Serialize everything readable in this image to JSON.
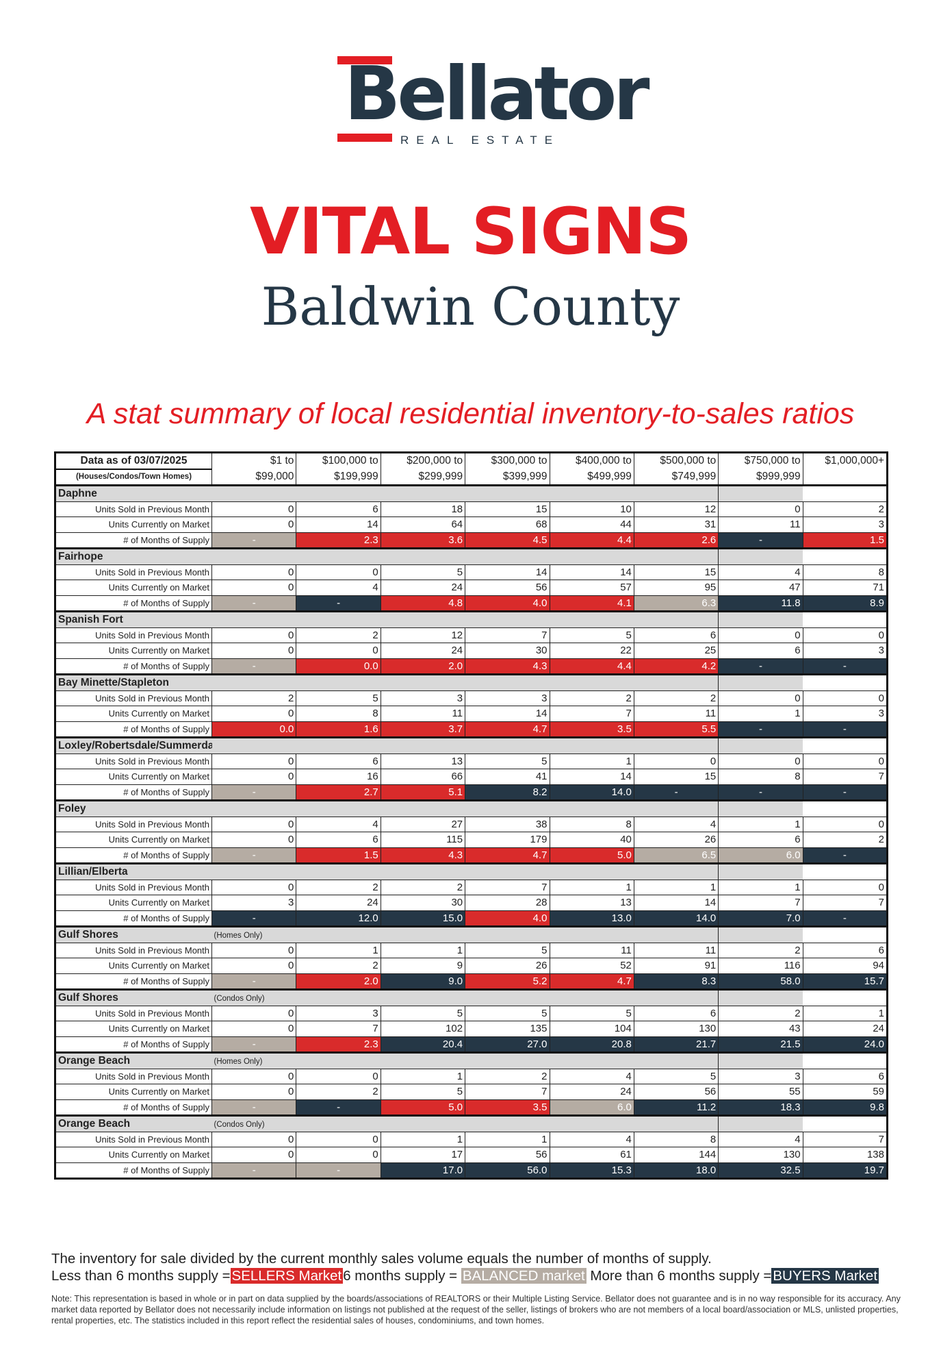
{
  "logo": {
    "name": "Bellator",
    "subtitle": "REAL ESTATE"
  },
  "title": "VITAL SIGNS",
  "county": "Baldwin County",
  "tagline": "A stat summary of local residential inventory-to-sales ratios",
  "colors": {
    "sellers": "#d92b2b",
    "balanced": "#b5aca3",
    "buyers": "#253746",
    "brand_red": "#e31e24",
    "brand_navy": "#253746"
  },
  "table": {
    "header": {
      "date_label": "Data as of 03/07/2025",
      "scope_label": "(Houses/Condos/Town Homes)",
      "columns": [
        [
          "$1 to",
          "$99,000"
        ],
        [
          "$100,000 to",
          "$199,999"
        ],
        [
          "$200,000 to",
          "$299,999"
        ],
        [
          "$300,000 to",
          "$399,999"
        ],
        [
          "$400,000 to",
          "$499,999"
        ],
        [
          "$500,000 to",
          "$749,999"
        ],
        [
          "$750,000 to",
          "$999,999"
        ],
        [
          "$1,000,000+",
          ""
        ]
      ]
    },
    "row_labels": {
      "sold": "Units Sold in Previous Month",
      "market": "Units Currently on Market",
      "supply": "# of Months of Supply"
    },
    "regions": [
      {
        "name": "Daphne",
        "note": "",
        "sold": [
          "0",
          "6",
          "18",
          "15",
          "10",
          "12",
          "0",
          "2"
        ],
        "market": [
          "0",
          "14",
          "64",
          "68",
          "44",
          "31",
          "11",
          "3"
        ],
        "supply": [
          "-",
          "2.3",
          "3.6",
          "4.5",
          "4.4",
          "2.6",
          "-",
          "1.5"
        ],
        "status": [
          "balanced",
          "sellers",
          "sellers",
          "sellers",
          "sellers",
          "sellers",
          "buyers",
          "sellers"
        ]
      },
      {
        "name": "Fairhope",
        "note": "",
        "sold": [
          "0",
          "0",
          "5",
          "14",
          "14",
          "15",
          "4",
          "8"
        ],
        "market": [
          "0",
          "4",
          "24",
          "56",
          "57",
          "95",
          "47",
          "71"
        ],
        "supply": [
          "-",
          "-",
          "4.8",
          "4.0",
          "4.1",
          "6.3",
          "11.8",
          "8.9"
        ],
        "status": [
          "balanced",
          "buyers",
          "sellers",
          "sellers",
          "sellers",
          "balanced",
          "buyers",
          "buyers"
        ]
      },
      {
        "name": "Spanish Fort",
        "note": "",
        "sold": [
          "0",
          "2",
          "12",
          "7",
          "5",
          "6",
          "0",
          "0"
        ],
        "market": [
          "0",
          "0",
          "24",
          "30",
          "22",
          "25",
          "6",
          "3"
        ],
        "supply": [
          "-",
          "0.0",
          "2.0",
          "4.3",
          "4.4",
          "4.2",
          "-",
          "-"
        ],
        "status": [
          "balanced",
          "sellers",
          "sellers",
          "sellers",
          "sellers",
          "sellers",
          "buyers",
          "buyers"
        ]
      },
      {
        "name": "Bay Minette/Stapleton",
        "note": "",
        "sold": [
          "2",
          "5",
          "3",
          "3",
          "2",
          "2",
          "0",
          "0"
        ],
        "market": [
          "0",
          "8",
          "11",
          "14",
          "7",
          "11",
          "1",
          "3"
        ],
        "supply": [
          "0.0",
          "1.6",
          "3.7",
          "4.7",
          "3.5",
          "5.5",
          "-",
          "-"
        ],
        "status": [
          "sellers",
          "sellers",
          "sellers",
          "sellers",
          "sellers",
          "sellers",
          "buyers",
          "buyers"
        ]
      },
      {
        "name": "Loxley/Robertsdale/Summerdale",
        "note": "",
        "sold": [
          "0",
          "6",
          "13",
          "5",
          "1",
          "0",
          "0",
          "0"
        ],
        "market": [
          "0",
          "16",
          "66",
          "41",
          "14",
          "15",
          "8",
          "7"
        ],
        "supply": [
          "-",
          "2.7",
          "5.1",
          "8.2",
          "14.0",
          "-",
          "-",
          "-"
        ],
        "status": [
          "balanced",
          "sellers",
          "sellers",
          "buyers",
          "buyers",
          "buyers",
          "buyers",
          "buyers"
        ]
      },
      {
        "name": "Foley",
        "note": "",
        "sold": [
          "0",
          "4",
          "27",
          "38",
          "8",
          "4",
          "1",
          "0"
        ],
        "market": [
          "0",
          "6",
          "115",
          "179",
          "40",
          "26",
          "6",
          "2"
        ],
        "supply": [
          "-",
          "1.5",
          "4.3",
          "4.7",
          "5.0",
          "6.5",
          "6.0",
          "-"
        ],
        "status": [
          "balanced",
          "sellers",
          "sellers",
          "sellers",
          "sellers",
          "balanced",
          "balanced",
          "buyers"
        ]
      },
      {
        "name": "Lillian/Elberta",
        "note": "",
        "sold": [
          "0",
          "2",
          "2",
          "7",
          "1",
          "1",
          "1",
          "0"
        ],
        "market": [
          "3",
          "24",
          "30",
          "28",
          "13",
          "14",
          "7",
          "7"
        ],
        "supply": [
          "-",
          "12.0",
          "15.0",
          "4.0",
          "13.0",
          "14.0",
          "7.0",
          "-"
        ],
        "status": [
          "buyers",
          "buyers",
          "buyers",
          "sellers",
          "buyers",
          "buyers",
          "buyers",
          "buyers"
        ]
      },
      {
        "name": "Gulf Shores",
        "note": "(Homes Only)",
        "sold": [
          "0",
          "1",
          "1",
          "5",
          "11",
          "11",
          "2",
          "6"
        ],
        "market": [
          "0",
          "2",
          "9",
          "26",
          "52",
          "91",
          "116",
          "94"
        ],
        "supply": [
          "-",
          "2.0",
          "9.0",
          "5.2",
          "4.7",
          "8.3",
          "58.0",
          "15.7"
        ],
        "status": [
          "balanced",
          "sellers",
          "buyers",
          "sellers",
          "sellers",
          "buyers",
          "buyers",
          "buyers"
        ]
      },
      {
        "name": "Gulf Shores",
        "note": "(Condos Only)",
        "sold": [
          "0",
          "3",
          "5",
          "5",
          "5",
          "6",
          "2",
          "1"
        ],
        "market": [
          "0",
          "7",
          "102",
          "135",
          "104",
          "130",
          "43",
          "24"
        ],
        "supply": [
          "-",
          "2.3",
          "20.4",
          "27.0",
          "20.8",
          "21.7",
          "21.5",
          "24.0"
        ],
        "status": [
          "balanced",
          "sellers",
          "buyers",
          "buyers",
          "buyers",
          "buyers",
          "buyers",
          "buyers"
        ]
      },
      {
        "name": "Orange Beach",
        "note": "(Homes Only)",
        "sold": [
          "0",
          "0",
          "1",
          "2",
          "4",
          "5",
          "3",
          "6"
        ],
        "market": [
          "0",
          "2",
          "5",
          "7",
          "24",
          "56",
          "55",
          "59"
        ],
        "supply": [
          "-",
          "-",
          "5.0",
          "3.5",
          "6.0",
          "11.2",
          "18.3",
          "9.8"
        ],
        "status": [
          "balanced",
          "buyers",
          "sellers",
          "sellers",
          "balanced",
          "buyers",
          "buyers",
          "buyers"
        ]
      },
      {
        "name": "Orange Beach",
        "note": "(Condos Only)",
        "sold": [
          "0",
          "0",
          "1",
          "1",
          "4",
          "8",
          "4",
          "7"
        ],
        "market": [
          "0",
          "0",
          "17",
          "56",
          "61",
          "144",
          "130",
          "138"
        ],
        "supply": [
          "-",
          "-",
          "17.0",
          "56.0",
          "15.3",
          "18.0",
          "32.5",
          "19.7"
        ],
        "status": [
          "balanced",
          "balanced",
          "buyers",
          "buyers",
          "buyers",
          "buyers",
          "buyers",
          "buyers"
        ]
      }
    ]
  },
  "footer": {
    "explanation": "The inventory for sale divided by the current monthly sales volume equals the number of months of supply.",
    "less_than": "Less than 6 months supply =",
    "sellers_tag": "SELLERS Market",
    "six": "6 months supply =",
    "balanced_tag": "BALANCED market",
    "more_than": "More than 6 months supply =",
    "buyers_tag": "BUYERS Market",
    "note": "Note: This representation is based in whole or in part on data supplied by the boards/associations of REALTORS or their Multiple Listing Service. Bellator does not guarantee and is in no way responsible for its accuracy. Any market data reported by Bellator does not necessarily include information on listings not published at the request of the seller, listings of brokers who are not members of a local board/association or MLS, unlisted properties, rental properties, etc. The statistics included in this report reflect the residential sales of houses, condominiums, and town homes."
  }
}
